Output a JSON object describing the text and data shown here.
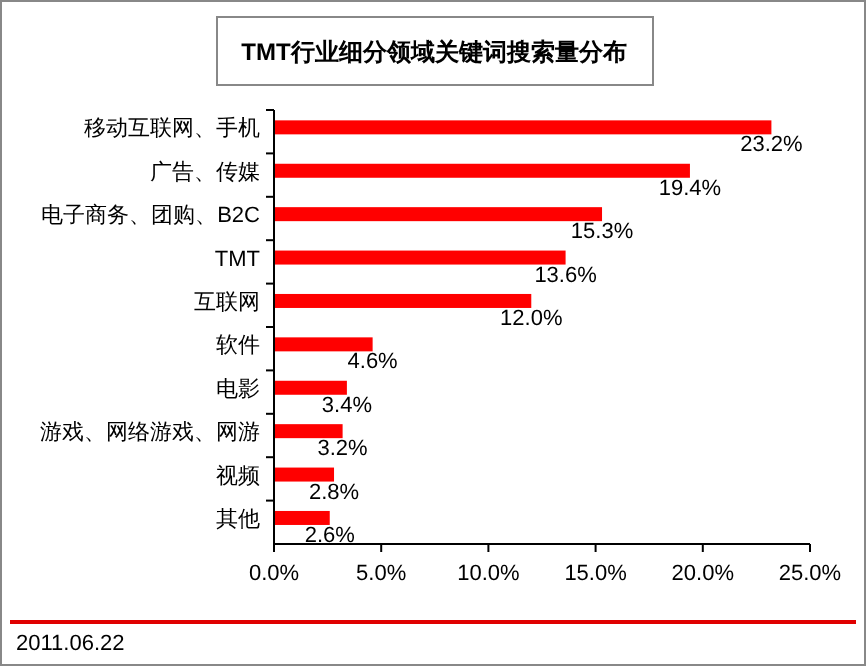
{
  "chart_data": {
    "type": "bar",
    "orientation": "horizontal",
    "title": "TMT行业细分领域关键词搜索量分布",
    "categories": [
      "移动互联网、手机",
      "广告、传媒",
      "电子商务、团购、B2C",
      "TMT",
      "互联网",
      "软件",
      "电影",
      "游戏、网络游戏、网游",
      "视频",
      "其他"
    ],
    "values": [
      23.2,
      19.4,
      15.3,
      13.6,
      12.0,
      4.6,
      3.4,
      3.2,
      2.8,
      2.6
    ],
    "value_labels": [
      "23.2%",
      "19.4%",
      "15.3%",
      "13.6%",
      "12.0%",
      "4.6%",
      "3.4%",
      "3.2%",
      "2.8%",
      "2.6%"
    ],
    "color": "#ff0000",
    "xlim": [
      0,
      25
    ],
    "xticks": [
      {
        "value": 0,
        "label": "0.0%"
      },
      {
        "value": 5,
        "label": "5.0%"
      },
      {
        "value": 10,
        "label": "10.0%"
      },
      {
        "value": 15,
        "label": "15.0%"
      },
      {
        "value": 20,
        "label": "20.0%"
      },
      {
        "value": 25,
        "label": "25.0%"
      }
    ],
    "grid": false,
    "annotations": [
      "2011.06.22"
    ]
  }
}
